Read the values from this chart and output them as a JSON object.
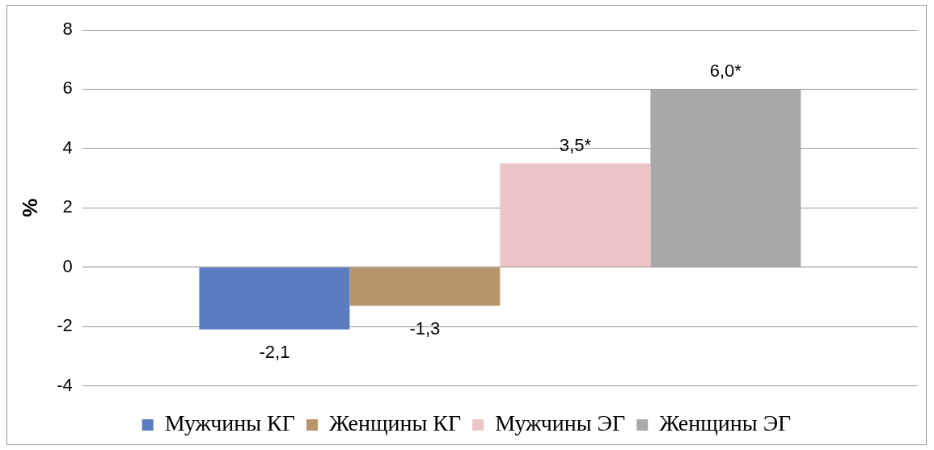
{
  "chart_data": {
    "type": "bar",
    "ylabel": "%",
    "categories": [
      null
    ],
    "series": [
      {
        "name": "Мужчины КГ",
        "color": "#5a7cc0",
        "values": [
          -2.1
        ],
        "value_labels": [
          "-2,1"
        ]
      },
      {
        "name": "Женщины КГ",
        "color": "#b8956a",
        "values": [
          -1.3
        ],
        "value_labels": [
          "-1,3"
        ]
      },
      {
        "name": "Мужчины ЭГ",
        "color": "#ecc6c6",
        "values": [
          3.5
        ],
        "value_labels": [
          "3,5*"
        ]
      },
      {
        "name": "Женщины ЭГ",
        "color": "#a9a9a9",
        "values": [
          6.0
        ],
        "value_labels": [
          "6,0*"
        ]
      }
    ],
    "ylim": [
      -4,
      8
    ],
    "yticks": [
      -4,
      -2,
      0,
      2,
      4,
      6,
      8
    ],
    "grid": "y",
    "legend": "bottom"
  }
}
